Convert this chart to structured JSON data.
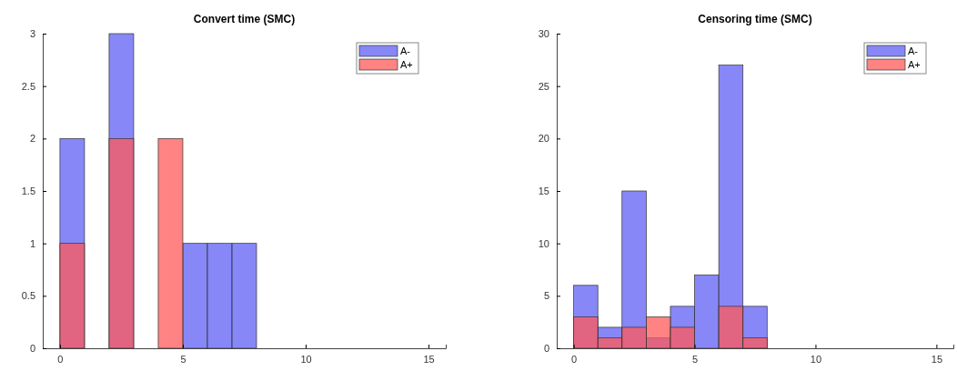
{
  "chart_data": [
    {
      "type": "histogram",
      "title": "Convert time (SMC)",
      "bins": [
        0,
        1,
        2,
        3,
        4,
        5,
        6,
        7,
        8
      ],
      "xlim": [
        -0.7,
        15.7
      ],
      "xticks": [
        0,
        5,
        10,
        15
      ],
      "ylim": [
        0,
        3
      ],
      "yticks": [
        0,
        {
          "value": 0.5,
          "label": "0.5"
        },
        1,
        {
          "value": 1.5,
          "label": "1.5"
        },
        2,
        {
          "value": 2.5,
          "label": "2.5"
        },
        3
      ],
      "legend": "top right",
      "series": [
        {
          "name": "A-",
          "color": "#5f5ff5",
          "values": [
            2,
            0,
            3,
            0,
            0,
            1,
            1,
            1
          ]
        },
        {
          "name": "A+",
          "color": "#ff5a5a",
          "values": [
            1,
            0,
            2,
            0,
            2,
            0,
            0,
            0
          ]
        }
      ]
    },
    {
      "type": "histogram",
      "title": "Censoring time (SMC)",
      "bins": [
        0,
        1,
        2,
        3,
        4,
        5,
        6,
        7,
        8
      ],
      "xlim": [
        -0.7,
        15.7
      ],
      "xticks": [
        0,
        5,
        10,
        15
      ],
      "ylim": [
        0,
        30
      ],
      "yticks": [
        0,
        5,
        10,
        15,
        20,
        25,
        30
      ],
      "legend": "top right",
      "series": [
        {
          "name": "A-",
          "color": "#5f5ff5",
          "values": [
            6,
            2,
            15,
            1,
            4,
            7,
            27,
            4
          ]
        },
        {
          "name": "A+",
          "color": "#ff5a5a",
          "values": [
            3,
            1,
            2,
            3,
            2,
            0,
            4,
            1
          ]
        }
      ]
    }
  ]
}
